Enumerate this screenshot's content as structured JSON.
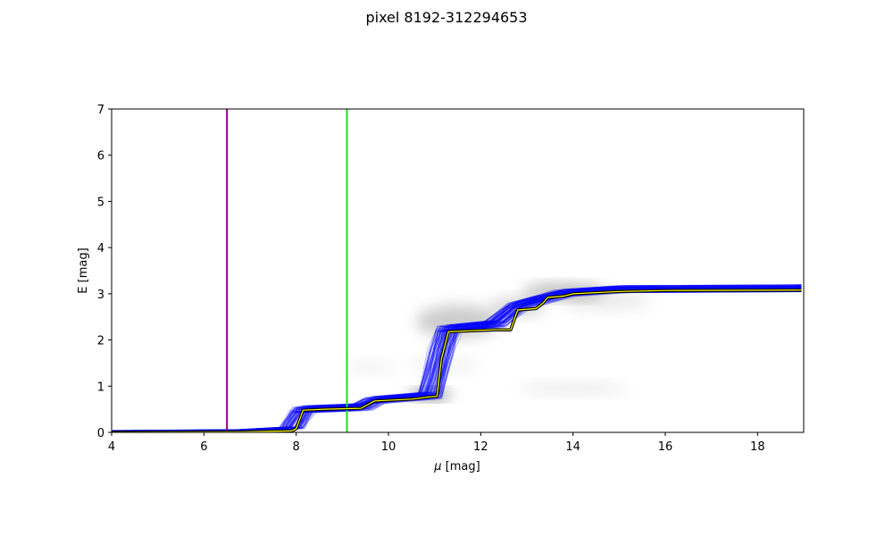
{
  "chart_data": {
    "type": "line",
    "title": "pixel 8192-312294653",
    "xlabel_symbol": "μ",
    "xlabel_unit": " [mag]",
    "ylabel": "E [mag]",
    "xlim": [
      4,
      19
    ],
    "ylim": [
      0,
      7
    ],
    "xticks": [
      "4",
      "6",
      "8",
      "10",
      "12",
      "14",
      "16",
      "18"
    ],
    "yticks": [
      "0",
      "1",
      "2",
      "3",
      "4",
      "5",
      "6",
      "7"
    ],
    "grid": false,
    "legend": "none",
    "vertical_lines": [
      {
        "x": 6.5,
        "color": "#8b008b"
      },
      {
        "x": 9.1,
        "color": "#22dd22"
      }
    ],
    "best_fit": {
      "color_outer": "#000000",
      "color_inner": "#ffff00",
      "points": [
        [
          4.0,
          0.0
        ],
        [
          6.8,
          0.01
        ],
        [
          7.9,
          0.03
        ],
        [
          8.0,
          0.08
        ],
        [
          8.15,
          0.48
        ],
        [
          8.6,
          0.5
        ],
        [
          9.4,
          0.52
        ],
        [
          9.55,
          0.6
        ],
        [
          9.7,
          0.68
        ],
        [
          10.5,
          0.72
        ],
        [
          10.9,
          0.77
        ],
        [
          11.05,
          0.78
        ],
        [
          11.15,
          1.6
        ],
        [
          11.3,
          2.18
        ],
        [
          11.8,
          2.2
        ],
        [
          12.3,
          2.22
        ],
        [
          12.65,
          2.22
        ],
        [
          12.8,
          2.65
        ],
        [
          13.2,
          2.68
        ],
        [
          13.35,
          2.8
        ],
        [
          13.45,
          2.92
        ],
        [
          13.8,
          2.95
        ],
        [
          14.0,
          3.0
        ],
        [
          15.0,
          3.05
        ],
        [
          16.0,
          3.07
        ],
        [
          18.95,
          3.08
        ]
      ]
    },
    "samples": {
      "color": "#0000ff",
      "count": 120,
      "points": [
        [
          4.0,
          0.02
        ],
        [
          6.8,
          0.04
        ],
        [
          7.9,
          0.1
        ],
        [
          8.15,
          0.5
        ],
        [
          9.4,
          0.55
        ],
        [
          9.7,
          0.7
        ],
        [
          10.9,
          0.8
        ],
        [
          11.15,
          1.8
        ],
        [
          11.3,
          2.25
        ],
        [
          12.3,
          2.35
        ],
        [
          12.8,
          2.75
        ],
        [
          13.35,
          2.9
        ],
        [
          13.8,
          3.02
        ],
        [
          15.0,
          3.1
        ],
        [
          18.95,
          3.12
        ]
      ]
    },
    "density": {
      "color": "#000000",
      "blobs": [
        {
          "x": 10.9,
          "y": 0.82,
          "sx": 0.45,
          "sy": 0.1,
          "w": 0.55
        },
        {
          "x": 11.5,
          "y": 2.4,
          "sx": 0.9,
          "sy": 0.35,
          "w": 0.2
        },
        {
          "x": 12.8,
          "y": 2.72,
          "sx": 0.6,
          "sy": 0.18,
          "w": 0.18
        },
        {
          "x": 13.8,
          "y": 3.05,
          "sx": 0.9,
          "sy": 0.15,
          "w": 0.3
        },
        {
          "x": 14.7,
          "y": 2.85,
          "sx": 1.0,
          "sy": 0.2,
          "w": 0.08
        },
        {
          "x": 14.0,
          "y": 0.95,
          "sx": 1.2,
          "sy": 0.12,
          "w": 0.08
        },
        {
          "x": 11.2,
          "y": 1.45,
          "sx": 0.8,
          "sy": 0.15,
          "w": 0.05
        },
        {
          "x": 9.6,
          "y": 1.4,
          "sx": 0.6,
          "sy": 0.12,
          "w": 0.05
        }
      ]
    }
  }
}
